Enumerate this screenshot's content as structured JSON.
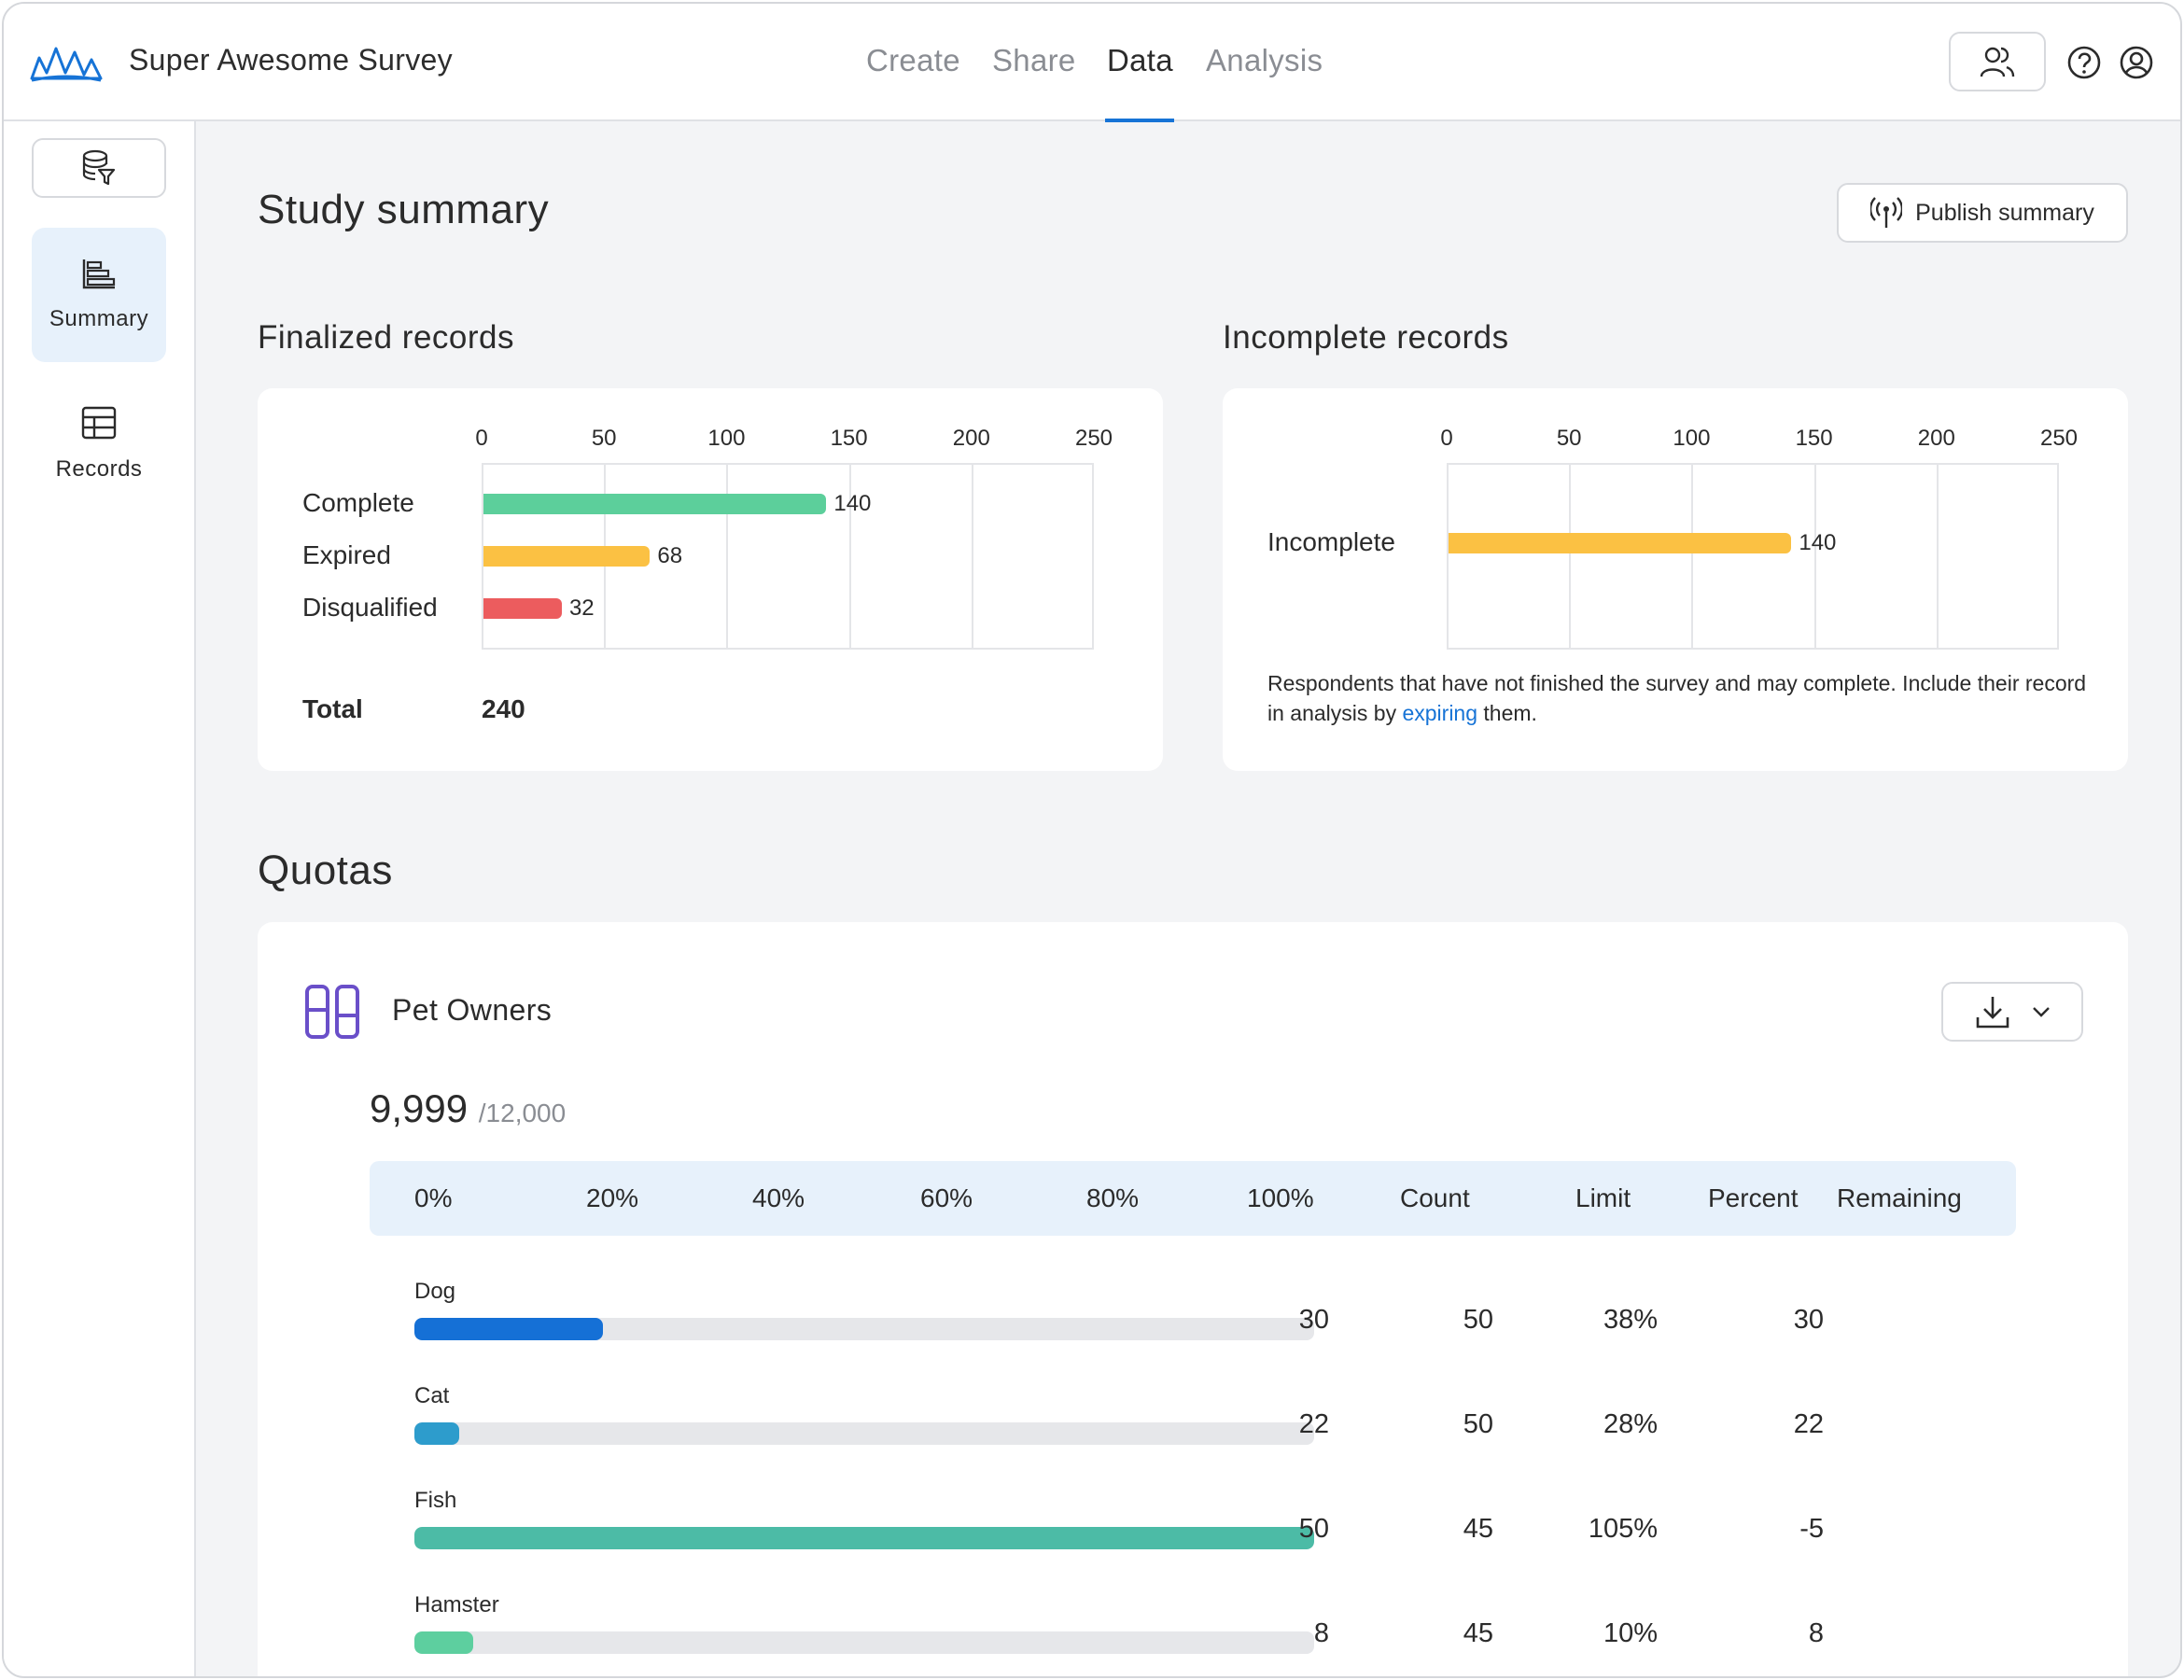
{
  "header": {
    "title": "Super Awesome Survey",
    "tabs": [
      {
        "label": "Create",
        "active": false
      },
      {
        "label": "Share",
        "active": false
      },
      {
        "label": "Data",
        "active": true
      },
      {
        "label": "Analysis",
        "active": false
      }
    ],
    "accent_color": "#1673d6"
  },
  "sidebar": {
    "items": [
      {
        "label": "Summary",
        "icon": "bar-chart-icon",
        "active": true
      },
      {
        "label": "Records",
        "icon": "table-icon",
        "active": false
      }
    ]
  },
  "main": {
    "title": "Study summary",
    "publish_label": "Publish summary",
    "finalized": {
      "title": "Finalized records",
      "total_label": "Total",
      "total_value": "240"
    },
    "incomplete": {
      "title": "Incomplete records",
      "note_before": "Respondents that have not finished the survey and may complete. Include their record in analysis by ",
      "note_link": "expiring",
      "note_after": " them."
    },
    "quotas": {
      "title": "Quotas",
      "name": "Pet Owners",
      "count": "9,999",
      "limit": "/12,000",
      "columns": [
        "0%",
        "20%",
        "40%",
        "60%",
        "80%",
        "100%",
        "Count",
        "Limit",
        "Percent",
        "Remaining"
      ],
      "rows": [
        {
          "label": "Dog",
          "progress": 0.21,
          "count": "30",
          "limit": "50",
          "percent": "38%",
          "remaining": "30",
          "color": "#1570d6"
        },
        {
          "label": "Cat",
          "progress": 0.05,
          "count": "22",
          "limit": "50",
          "percent": "28%",
          "remaining": "22",
          "color": "#2d9ccc"
        },
        {
          "label": "Fish",
          "progress": 1.0,
          "count": "50",
          "limit": "45",
          "percent": "105%",
          "remaining": "-5",
          "color": "#4cbba6"
        },
        {
          "label": "Hamster",
          "progress": 0.065,
          "count": "8",
          "limit": "45",
          "percent": "10%",
          "remaining": "8",
          "color": "#5dcf9f"
        }
      ]
    }
  },
  "chart_data": [
    {
      "type": "bar",
      "orientation": "horizontal",
      "title": "Finalized records",
      "categories": [
        "Complete",
        "Expired",
        "Disqualified"
      ],
      "values": [
        140,
        68,
        32
      ],
      "colors": [
        "#5ccf9b",
        "#fbc143",
        "#ec5c5e"
      ],
      "xlim": [
        0,
        250
      ],
      "xticks": [
        "0",
        "50",
        "100",
        "150",
        "200",
        "250"
      ],
      "grid": true
    },
    {
      "type": "bar",
      "orientation": "horizontal",
      "title": "Incomplete records",
      "categories": [
        "Incomplete"
      ],
      "values": [
        140
      ],
      "colors": [
        "#fbc143"
      ],
      "xlim": [
        0,
        250
      ],
      "xticks": [
        "0",
        "50",
        "100",
        "150",
        "200",
        "250"
      ],
      "grid": true
    }
  ]
}
